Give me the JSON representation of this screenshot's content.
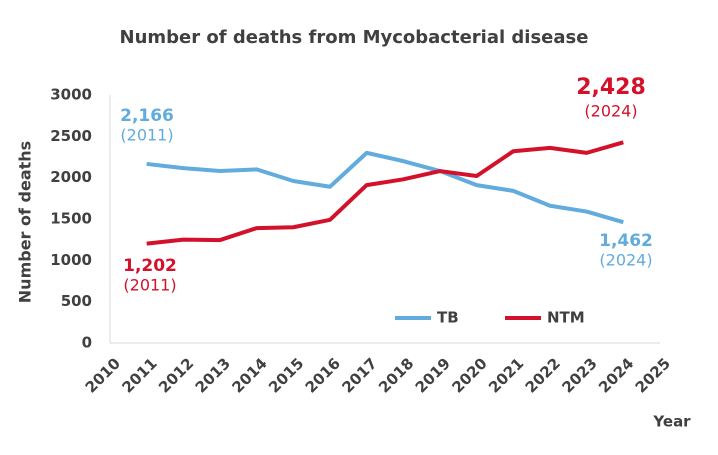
{
  "chart_data": {
    "type": "line",
    "title": "Number of deaths from Mycobacterial disease",
    "x_label": "Year",
    "y_label": "Number of deaths",
    "x": [
      2011,
      2012,
      2013,
      2014,
      2015,
      2016,
      2017,
      2018,
      2019,
      2020,
      2021,
      2022,
      2023,
      2024
    ],
    "series": [
      {
        "name": "TB",
        "color": "#62abdd",
        "values": [
          2166,
          2115,
          2080,
          2100,
          1960,
          1890,
          2300,
          2200,
          2080,
          1910,
          1840,
          1660,
          1590,
          1462
        ]
      },
      {
        "name": "NTM",
        "color": "#d3112b",
        "values": [
          1202,
          1250,
          1245,
          1390,
          1400,
          1490,
          1910,
          1980,
          2080,
          2020,
          2320,
          2360,
          2300,
          2428
        ]
      }
    ],
    "xlim": [
      2010,
      2025
    ],
    "xticks": [
      2010,
      2011,
      2012,
      2013,
      2014,
      2015,
      2016,
      2017,
      2018,
      2019,
      2020,
      2021,
      2022,
      2023,
      2024,
      2025
    ],
    "ylim": [
      0,
      3000
    ],
    "yticks": [
      0,
      500,
      1000,
      1500,
      2000,
      2500,
      3000
    ],
    "grid": false,
    "legend": "bottom-right",
    "annotations": [
      {
        "value": "2,166",
        "year": "(2011)"
      },
      {
        "value": "1,462",
        "year": "(2024)"
      },
      {
        "value": "1,202",
        "year": "(2011)"
      },
      {
        "value": "2,428",
        "year": "(2024)"
      }
    ]
  }
}
